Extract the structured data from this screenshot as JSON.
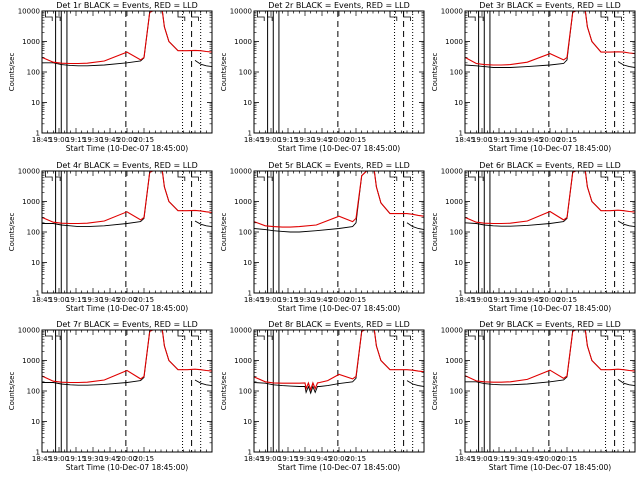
{
  "figure": {
    "background": "#ffffff",
    "axis_color": "#000000",
    "events_color": "#000000",
    "lld_color": "#e00000"
  },
  "chart_data": [
    {
      "type": "line",
      "title": "Det 1r BLACK = Events, RED = LLD",
      "xlabel": "Start Time (10-Dec-07 18:45:00)",
      "ylabel": "Counts/sec",
      "yscale": "log",
      "ylim": [
        1,
        10000
      ],
      "x_ticks": [
        "18:45",
        "19:00",
        "19:15",
        "19:30",
        "19:45",
        "20:00",
        "20:15"
      ],
      "y_ticks": [
        "1",
        "10",
        "100",
        "1000",
        "10000"
      ],
      "x": [
        0,
        10,
        17,
        25,
        32,
        40,
        55,
        75,
        87,
        90,
        95,
        101,
        106,
        108,
        112,
        120,
        128,
        135,
        140,
        145,
        150
      ],
      "series": [
        {
          "name": "Events",
          "color": "#000000",
          "values": [
            200,
            200,
            175,
            165,
            160,
            160,
            170,
            200,
            230,
            290,
            9000,
            12000,
            12000,
            3000,
            1000,
            500,
            null,
            240,
            180,
            160,
            150
          ]
        },
        {
          "name": "LLD",
          "color": "#e00000",
          "values": [
            300,
            210,
            195,
            190,
            190,
            195,
            230,
            450,
            250,
            300,
            9000,
            12000,
            12000,
            3000,
            1000,
            500,
            500,
            510,
            500,
            470,
            450
          ]
        }
      ]
    },
    {
      "type": "line",
      "title": "Det 2r BLACK = Events, RED = LLD",
      "xlabel": "Start Time (10-Dec-07 18:45:00)",
      "ylabel": "Counts/sec",
      "yscale": "log",
      "ylim": [
        1,
        10000
      ],
      "x_ticks": [
        "18:45",
        "19:00",
        "19:15",
        "19:30",
        "19:45",
        "20:00",
        "20:15"
      ],
      "y_ticks": [
        "1",
        "10",
        "100",
        "1000",
        "10000"
      ],
      "x": [],
      "series": []
    },
    {
      "type": "line",
      "title": "Det 3r BLACK = Events, RED = LLD",
      "xlabel": "Start Time (10-Dec-07 18:45:00)",
      "ylabel": "Counts/sec",
      "yscale": "log",
      "ylim": [
        1,
        10000
      ],
      "x_ticks": [
        "18:45",
        "19:00",
        "19:15",
        "19:30",
        "19:45",
        "20:00",
        "20:15"
      ],
      "y_ticks": [
        "1",
        "10",
        "100",
        "1000",
        "10000"
      ],
      "x": [
        0,
        10,
        17,
        25,
        32,
        40,
        55,
        75,
        87,
        90,
        95,
        101,
        106,
        108,
        112,
        120,
        128,
        135,
        140,
        145,
        150
      ],
      "series": [
        {
          "name": "Events",
          "color": "#000000",
          "values": [
            170,
            160,
            150,
            140,
            140,
            140,
            150,
            170,
            190,
            250,
            9000,
            12000,
            12000,
            3000,
            1000,
            450,
            null,
            220,
            170,
            150,
            140
          ]
        },
        {
          "name": "LLD",
          "color": "#e00000",
          "values": [
            300,
            190,
            175,
            170,
            170,
            175,
            210,
            400,
            250,
            300,
            9000,
            12000,
            12000,
            3000,
            1000,
            450,
            450,
            460,
            450,
            420,
            400
          ]
        }
      ]
    },
    {
      "type": "line",
      "title": "Det 4r BLACK = Events, RED = LLD",
      "xlabel": "Start Time (10-Dec-07 18:45:00)",
      "ylabel": "Counts/sec",
      "yscale": "log",
      "ylim": [
        1,
        10000
      ],
      "x_ticks": [
        "18:45",
        "19:00",
        "19:15",
        "19:30",
        "19:45",
        "20:00",
        "20:15"
      ],
      "y_ticks": [
        "1",
        "10",
        "100",
        "1000",
        "10000"
      ],
      "x": [
        0,
        10,
        17,
        25,
        32,
        40,
        55,
        75,
        87,
        90,
        95,
        101,
        106,
        108,
        112,
        120,
        128,
        135,
        140,
        145,
        150
      ],
      "series": [
        {
          "name": "Events",
          "color": "#000000",
          "values": [
            190,
            190,
            170,
            160,
            150,
            150,
            160,
            190,
            220,
            280,
            9000,
            12000,
            12000,
            3000,
            1000,
            500,
            null,
            230,
            180,
            160,
            150
          ]
        },
        {
          "name": "LLD",
          "color": "#e00000",
          "values": [
            300,
            210,
            195,
            190,
            190,
            195,
            230,
            460,
            250,
            300,
            9000,
            12000,
            12000,
            3000,
            1000,
            500,
            500,
            510,
            490,
            460,
            440
          ]
        }
      ]
    },
    {
      "type": "line",
      "title": "Det 5r BLACK = Events, RED = LLD",
      "xlabel": "Start Time (10-Dec-07 18:45:00)",
      "ylabel": "Counts/sec",
      "yscale": "log",
      "ylim": [
        1,
        10000
      ],
      "x_ticks": [
        "18:45",
        "19:00",
        "19:15",
        "19:30",
        "19:45",
        "20:00",
        "20:15"
      ],
      "y_ticks": [
        "1",
        "10",
        "100",
        "1000",
        "10000"
      ],
      "x": [
        0,
        10,
        17,
        25,
        32,
        40,
        55,
        75,
        87,
        90,
        95,
        101,
        106,
        108,
        112,
        120,
        128,
        135,
        140,
        145,
        150
      ],
      "series": [
        {
          "name": "Events",
          "color": "#000000",
          "values": [
            130,
            120,
            110,
            105,
            100,
            100,
            110,
            130,
            150,
            200,
            7000,
            12000,
            12000,
            3000,
            900,
            400,
            null,
            200,
            150,
            130,
            120
          ]
        },
        {
          "name": "LLD",
          "color": "#e00000",
          "values": [
            220,
            160,
            150,
            145,
            145,
            150,
            170,
            330,
            220,
            280,
            7000,
            12000,
            12000,
            3000,
            900,
            400,
            400,
            400,
            380,
            350,
            330
          ]
        }
      ]
    },
    {
      "type": "line",
      "title": "Det 6r BLACK = Events, RED = LLD",
      "xlabel": "Start Time (10-Dec-07 18:45:00)",
      "ylabel": "Counts/sec",
      "yscale": "log",
      "ylim": [
        1,
        10000
      ],
      "x_ticks": [
        "18:45",
        "19:00",
        "19:15",
        "19:30",
        "19:45",
        "20:00",
        "20:15"
      ],
      "y_ticks": [
        "1",
        "10",
        "100",
        "1000",
        "10000"
      ],
      "x": [
        0,
        10,
        17,
        25,
        32,
        40,
        55,
        75,
        87,
        90,
        95,
        101,
        106,
        108,
        112,
        120,
        128,
        135,
        140,
        145,
        150
      ],
      "series": [
        {
          "name": "Events",
          "color": "#000000",
          "values": [
            200,
            190,
            170,
            160,
            155,
            155,
            165,
            190,
            220,
            280,
            9000,
            12000,
            12000,
            3000,
            1000,
            500,
            null,
            230,
            180,
            160,
            150
          ]
        },
        {
          "name": "LLD",
          "color": "#e00000",
          "values": [
            300,
            210,
            195,
            190,
            190,
            195,
            230,
            470,
            250,
            300,
            9000,
            12000,
            12000,
            3000,
            1000,
            500,
            500,
            520,
            500,
            470,
            450
          ]
        }
      ]
    },
    {
      "type": "line",
      "title": "Det 7r BLACK = Events, RED = LLD",
      "xlabel": "Start Time (10-Dec-07 18:45:00)",
      "ylabel": "Counts/sec",
      "yscale": "log",
      "ylim": [
        1,
        10000
      ],
      "x_ticks": [
        "18:45",
        "19:00",
        "19:15",
        "19:30",
        "19:45",
        "20:00",
        "20:15"
      ],
      "y_ticks": [
        "1",
        "10",
        "100",
        "1000",
        "10000"
      ],
      "x": [
        0,
        10,
        17,
        25,
        32,
        40,
        55,
        75,
        87,
        90,
        95,
        101,
        106,
        108,
        112,
        120,
        128,
        135,
        140,
        145,
        150
      ],
      "series": [
        {
          "name": "Events",
          "color": "#000000",
          "values": [
            190,
            190,
            170,
            160,
            155,
            155,
            165,
            190,
            220,
            280,
            9000,
            12000,
            12000,
            3000,
            1000,
            500,
            null,
            230,
            180,
            160,
            150
          ]
        },
        {
          "name": "LLD",
          "color": "#e00000",
          "values": [
            310,
            210,
            195,
            190,
            190,
            195,
            230,
            470,
            250,
            300,
            9000,
            12000,
            12000,
            3000,
            1000,
            500,
            500,
            520,
            500,
            470,
            450
          ]
        }
      ]
    },
    {
      "type": "line",
      "title": "Det 8r BLACK = Events, RED = LLD",
      "xlabel": "Start Time (10-Dec-07 18:45:00)",
      "ylabel": "Counts/sec",
      "yscale": "log",
      "ylim": [
        1,
        10000
      ],
      "x_ticks": [
        "18:45",
        "19:00",
        "19:15",
        "19:30",
        "19:45",
        "20:00",
        "20:15"
      ],
      "y_ticks": [
        "1",
        "10",
        "100",
        "1000",
        "10000"
      ],
      "x": [
        0,
        10,
        17,
        25,
        32,
        40,
        45,
        46,
        48,
        50,
        52,
        54,
        56,
        58,
        65,
        75,
        87,
        90,
        95,
        101,
        106,
        108,
        112,
        120,
        128,
        135,
        140,
        145,
        150
      ],
      "series": [
        {
          "name": "Events",
          "color": "#000000",
          "values": [
            190,
            180,
            160,
            150,
            145,
            140,
            140,
            90,
            140,
            85,
            140,
            90,
            140,
            140,
            150,
            175,
            200,
            260,
            9000,
            12000,
            12000,
            3000,
            1000,
            500,
            null,
            220,
            170,
            150,
            140
          ]
        },
        {
          "name": "LLD",
          "color": "#e00000",
          "values": [
            290,
            200,
            185,
            180,
            180,
            180,
            185,
            120,
            185,
            110,
            185,
            120,
            185,
            190,
            220,
            350,
            250,
            300,
            9000,
            12000,
            12000,
            3000,
            1000,
            500,
            500,
            500,
            480,
            450,
            430
          ]
        }
      ]
    },
    {
      "type": "line",
      "title": "Det 9r BLACK = Events, RED = LLD",
      "xlabel": "Start Time (10-Dec-07 18:45:00)",
      "ylabel": "Counts/sec",
      "yscale": "log",
      "ylim": [
        1,
        10000
      ],
      "x_ticks": [
        "18:45",
        "19:00",
        "19:15",
        "19:30",
        "19:45",
        "20:00",
        "20:15"
      ],
      "y_ticks": [
        "1",
        "10",
        "100",
        "1000",
        "10000"
      ],
      "x": [
        0,
        10,
        17,
        25,
        32,
        40,
        55,
        75,
        87,
        90,
        95,
        101,
        106,
        108,
        112,
        120,
        128,
        135,
        140,
        145,
        150
      ],
      "series": [
        {
          "name": "Events",
          "color": "#000000",
          "values": [
            200,
            200,
            175,
            165,
            160,
            160,
            170,
            200,
            230,
            290,
            9000,
            12000,
            12000,
            3000,
            1000,
            500,
            null,
            240,
            180,
            160,
            150
          ]
        },
        {
          "name": "LLD",
          "color": "#e00000",
          "values": [
            320,
            215,
            200,
            195,
            195,
            200,
            240,
            480,
            260,
            310,
            9000,
            12000,
            12000,
            3000,
            1000,
            500,
            500,
            520,
            500,
            470,
            450
          ]
        }
      ]
    }
  ]
}
